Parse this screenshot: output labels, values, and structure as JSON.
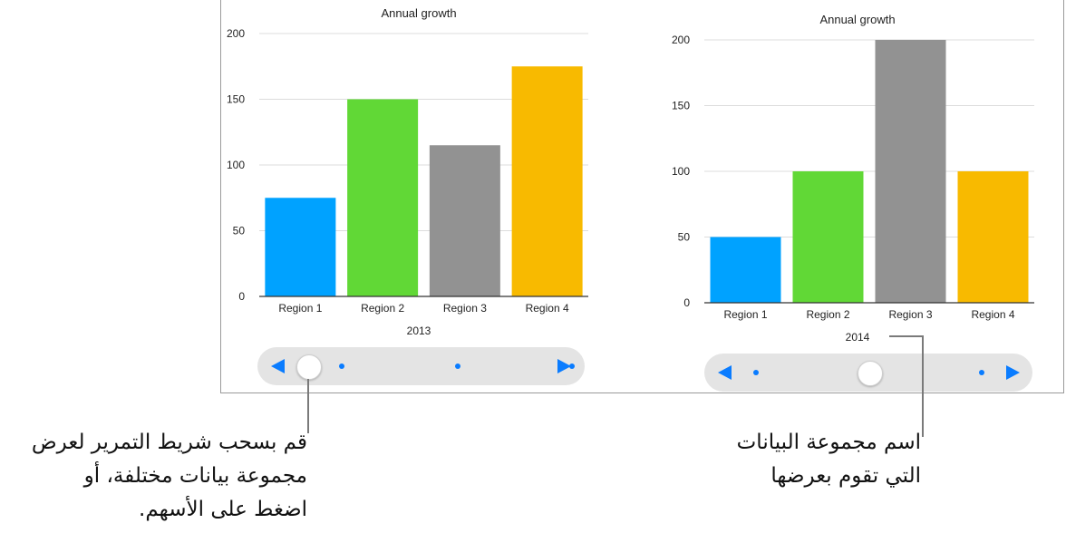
{
  "chart_data": [
    {
      "type": "bar",
      "title": "Annual growth",
      "xlabel": "2013",
      "categories": [
        "Region 1",
        "Region 2",
        "Region 3",
        "Region 4"
      ],
      "values": [
        75,
        150,
        115,
        175
      ],
      "colors": [
        "#00a2ff",
        "#61d836",
        "#929292",
        "#f8ba00"
      ],
      "ylim": [
        0,
        200
      ],
      "yticks": [
        "0",
        "50",
        "100",
        "150",
        "200"
      ],
      "grid": true
    },
    {
      "type": "bar",
      "title": "Annual growth",
      "xlabel": "2014",
      "categories": [
        "Region 1",
        "Region 2",
        "Region 3",
        "Region 4"
      ],
      "values": [
        50,
        100,
        200,
        100
      ],
      "colors": [
        "#00a2ff",
        "#61d836",
        "#929292",
        "#f8ba00"
      ],
      "ylim": [
        0,
        200
      ],
      "yticks": [
        "0",
        "50",
        "100",
        "150",
        "200"
      ],
      "grid": true
    }
  ],
  "sliders": [
    {
      "dataset_count": 3,
      "selected_index": 0
    },
    {
      "dataset_count": 3,
      "selected_index": 1
    }
  ],
  "callouts": {
    "slider_note": "قم بسحب شريط التمرير لعرض\nمجموعة بيانات مختلفة، أو\nاضغط على الأسهم.",
    "dataset_name_note": "اسم مجموعة البيانات\nالتي تقوم بعرضها"
  },
  "colors": {
    "accent": "#0a7cff",
    "slider_track": "#e4e4e4"
  }
}
